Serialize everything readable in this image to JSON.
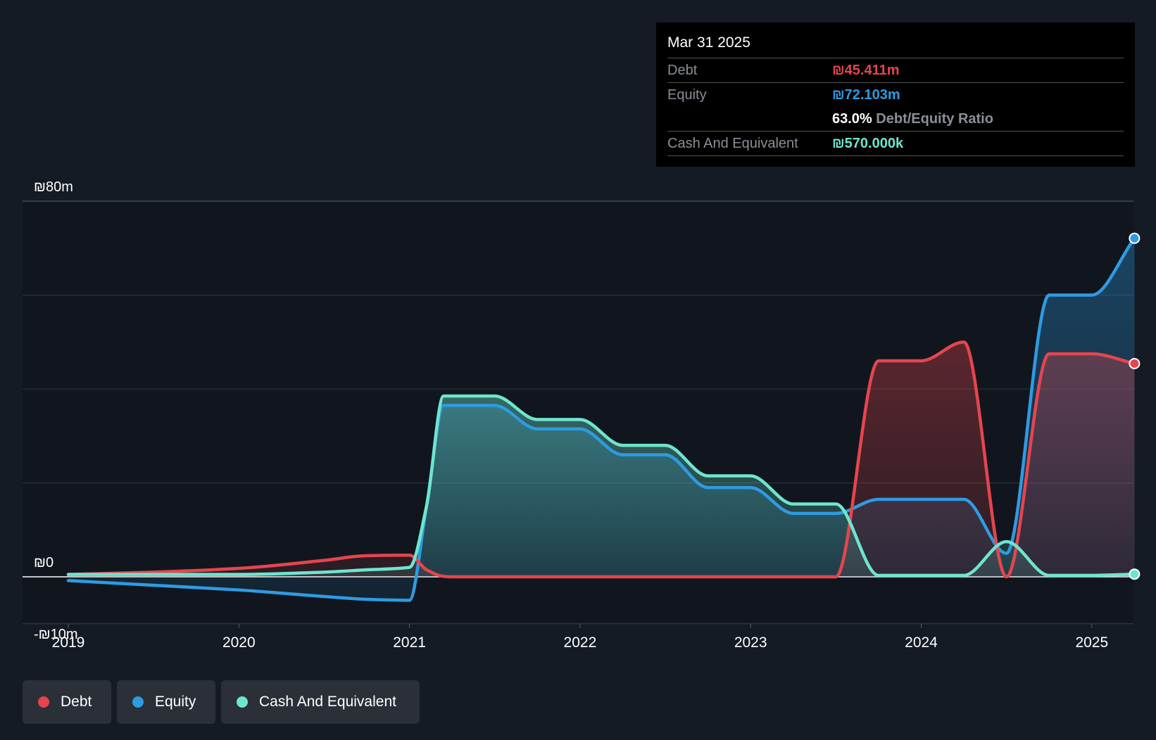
{
  "colors": {
    "debt": "#e5454d",
    "equity": "#2e9be2",
    "cash": "#6ee5cf",
    "background": "#151b24"
  },
  "tooltip": {
    "date": "Mar 31 2025",
    "debt_label": "Debt",
    "debt_value": "₪45.411m",
    "equity_label": "Equity",
    "equity_value": "₪72.103m",
    "ratio_value": "63.0%",
    "ratio_label": "Debt/Equity Ratio",
    "cash_label": "Cash And Equivalent",
    "cash_value": "₪570.000k"
  },
  "legend": {
    "debt": "Debt",
    "equity": "Equity",
    "cash": "Cash And Equivalent"
  },
  "chart_data": {
    "type": "area",
    "title": "",
    "xlabel": "",
    "ylabel": "",
    "ylim": [
      -10,
      80
    ],
    "x_ticks": [
      "2019",
      "2020",
      "2021",
      "2022",
      "2023",
      "2024",
      "2025"
    ],
    "y_labels": [
      "₪80m",
      "₪0",
      "-₪10m"
    ],
    "grid": true,
    "x": [
      2019.0,
      2019.5,
      2020.0,
      2020.5,
      2020.75,
      2021.0,
      2021.1,
      2021.2,
      2021.25,
      2021.5,
      2021.75,
      2022.0,
      2022.25,
      2022.5,
      2022.75,
      2023.0,
      2023.25,
      2023.5,
      2023.75,
      2024.0,
      2024.25,
      2024.5,
      2024.75,
      2025.0,
      2025.25
    ],
    "series": [
      {
        "name": "Debt",
        "values": [
          0.5,
          1.0,
          1.8,
          3.5,
          4.5,
          4.6,
          1.5,
          0.1,
          0,
          0,
          0,
          0,
          0,
          0,
          0,
          0,
          0,
          0,
          46.0,
          46.0,
          50.0,
          0,
          47.5,
          47.5,
          45.411
        ]
      },
      {
        "name": "Equity",
        "values": [
          -0.8,
          -1.8,
          -2.8,
          -4.2,
          -4.8,
          -5.0,
          15.0,
          36.5,
          36.5,
          36.5,
          31.5,
          31.5,
          26.0,
          26.0,
          19.0,
          19.0,
          13.5,
          13.5,
          16.5,
          16.5,
          16.5,
          5.0,
          60.0,
          60.0,
          72.103
        ]
      },
      {
        "name": "Cash And Equivalent",
        "values": [
          0.5,
          0.5,
          0.5,
          1.0,
          1.5,
          2.0,
          15.0,
          38.5,
          38.5,
          38.5,
          33.5,
          33.5,
          28.0,
          28.0,
          21.5,
          21.5,
          15.5,
          15.5,
          0.3,
          0.3,
          0.3,
          7.5,
          0.3,
          0.3,
          0.57
        ]
      }
    ]
  }
}
